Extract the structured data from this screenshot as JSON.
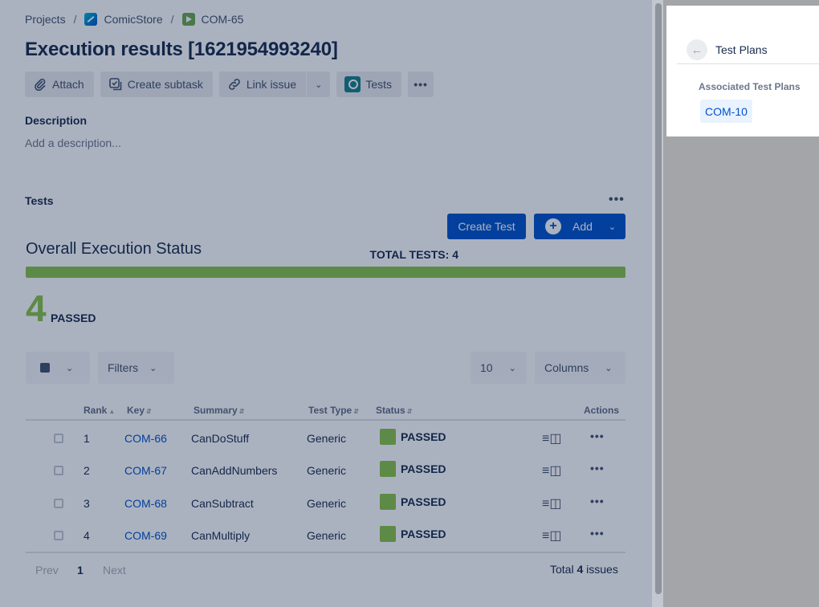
{
  "breadcrumb": {
    "projects": "Projects",
    "sep": "/",
    "project": "ComicStore",
    "issue": "COM-65"
  },
  "title": "Execution results [1621954993240]",
  "toolbar": {
    "attach": "Attach",
    "create_subtask": "Create subtask",
    "link_issue": "Link issue",
    "tests": "Tests"
  },
  "description": {
    "label": "Description",
    "placeholder": "Add a description..."
  },
  "tests_section": {
    "label": "Tests",
    "create_test": "Create Test",
    "add": "Add"
  },
  "overall": {
    "title": "Overall Execution Status",
    "total_tests": "TOTAL TESTS: 4",
    "passed_fraction": 1.0,
    "passed_count": "4",
    "passed_word": "PASSED",
    "bar_color": "#8bc34a"
  },
  "filters": {
    "filters_label": "Filters",
    "page_size": "10",
    "columns_label": "Columns"
  },
  "table": {
    "headers": {
      "rank": "Rank",
      "key": "Key",
      "summary": "Summary",
      "test_type": "Test Type",
      "status": "Status",
      "actions": "Actions"
    },
    "rows": [
      {
        "rank": "1",
        "key": "COM-66",
        "summary": "CanDoStuff",
        "type": "Generic",
        "status": "PASSED"
      },
      {
        "rank": "2",
        "key": "COM-67",
        "summary": "CanAddNumbers",
        "type": "Generic",
        "status": "PASSED"
      },
      {
        "rank": "3",
        "key": "COM-68",
        "summary": "CanSubtract",
        "type": "Generic",
        "status": "PASSED"
      },
      {
        "rank": "4",
        "key": "COM-69",
        "summary": "CanMultiply",
        "type": "Generic",
        "status": "PASSED"
      }
    ]
  },
  "pagination": {
    "prev": "Prev",
    "page": "1",
    "next": "Next",
    "total_prefix": "Total",
    "total_count": "4",
    "total_suffix": "issues"
  },
  "panel": {
    "title": "Test Plans",
    "assoc_label": "Associated Test Plans",
    "plan": "COM-10"
  },
  "icons": {
    "attach": "paperclip-icon",
    "subtask": "subtask-icon",
    "link": "link-icon",
    "tests": "xray-tests-icon",
    "back": "arrow-left-icon"
  }
}
